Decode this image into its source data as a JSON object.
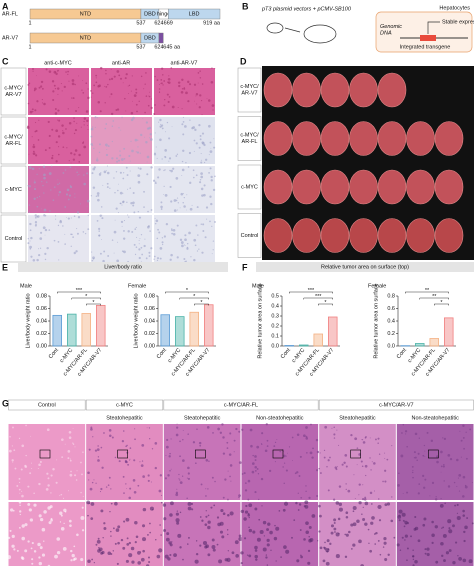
{
  "panel_a": {
    "label": "A",
    "rows": [
      {
        "name": "AR-FL",
        "domains": [
          "NTD",
          "DBD",
          "hinge",
          "LBD"
        ],
        "positions": [
          "1",
          "537",
          "624",
          "669",
          "919 aa"
        ]
      },
      {
        "name": "AR-V7",
        "domains": [
          "NTD",
          "DBD"
        ],
        "positions": [
          "1",
          "537",
          "624",
          "645 aa"
        ]
      }
    ]
  },
  "panel_b": {
    "label": "B",
    "vectors": "pT3 plasmid vectors + pCMV-SB100",
    "cell": "Hepatocytes",
    "expression": "Stable expression",
    "dna": [
      "Genomic",
      "DNA"
    ],
    "transgene": "Integrated transgene"
  },
  "panel_c": {
    "label": "C",
    "columns": [
      "anti-c-MYC",
      "anti-AR",
      "anti-AR-V7"
    ],
    "rows": [
      [
        "c-MYC/",
        "AR-V7"
      ],
      [
        "c-MYC/",
        "AR-FL"
      ],
      [
        "c-MYC"
      ],
      [
        "Control"
      ]
    ]
  },
  "panel_d": {
    "label": "D",
    "rows": [
      [
        "c-MYC/",
        "AR-V7"
      ],
      [
        "c-MYC/",
        "AR-FL"
      ],
      [
        "c-MYC"
      ],
      [
        "Control"
      ]
    ]
  },
  "panel_e": {
    "label": "E",
    "title": "Liver/body ratio",
    "charts": [
      {
        "type": "bar",
        "title": "Male",
        "ylabel": "Liver/body weight ratio",
        "categories": [
          "Cont",
          "c-MYC",
          "c-MYC/AR-FL",
          "c-MYC/AR-V7"
        ],
        "values": [
          0.049,
          0.051,
          0.052,
          0.065
        ],
        "colors": [
          "#5b9bd5",
          "#4bb3a8",
          "#f4b183",
          "#f08080"
        ],
        "ylim": [
          0,
          0.08
        ],
        "yticks": [
          {
            "value": 0,
            "label": "0.00"
          },
          0.02,
          0.04,
          0.06,
          0.08
        ],
        "stars": [
          "***",
          "*",
          "*"
        ]
      },
      {
        "type": "bar",
        "title": "Female",
        "ylabel": "Liver/body weight ratio",
        "categories": [
          "Cont",
          "c-MYC",
          "c-MYC/AR-FL",
          "c-MYC/AR-V7"
        ],
        "values": [
          0.05,
          0.047,
          0.054,
          0.066
        ],
        "colors": [
          "#5b9bd5",
          "#4bb3a8",
          "#f4b183",
          "#f08080"
        ],
        "ylim": [
          0,
          0.08
        ],
        "yticks": [
          {
            "value": 0,
            "label": "0.00"
          },
          0.02,
          0.04,
          0.06,
          0.08
        ],
        "stars": [
          "*",
          "*",
          "*"
        ]
      }
    ]
  },
  "panel_f": {
    "label": "F",
    "title": "Relative tumor area on surface (top)",
    "charts": [
      {
        "type": "bar",
        "title": "Male",
        "ylabel": "Relative tumor area on surface",
        "categories": [
          "Cont",
          "c-MYC",
          "c-MYC/AR-FL",
          "c-MYC/AR-V7"
        ],
        "values": [
          0.005,
          0.01,
          0.12,
          0.29
        ],
        "colors": [
          "#5b9bd5",
          "#4bb3a8",
          "#f4b183",
          "#f08080"
        ],
        "ylim": [
          0,
          0.5
        ],
        "yticks": [
          {
            "value": 0,
            "label": "0.0"
          },
          0.1,
          0.2,
          0.3,
          0.4,
          0.5
        ],
        "stars": [
          "***",
          "***",
          "*"
        ]
      },
      {
        "type": "bar",
        "title": "Female",
        "ylabel": "Relative tumor area on surface",
        "categories": [
          "Cont",
          "c-MYC",
          "c-MYC/AR-FL",
          "c-MYC/AR-V7"
        ],
        "values": [
          0.005,
          0.04,
          0.12,
          0.45
        ],
        "colors": [
          "#5b9bd5",
          "#4bb3a8",
          "#f4b183",
          "#f08080"
        ],
        "ylim": [
          0,
          0.8
        ],
        "yticks": [
          {
            "value": 0,
            "label": "0.0"
          },
          0.2,
          0.4,
          0.6,
          0.8
        ],
        "stars": [
          "**",
          "**",
          "*"
        ]
      }
    ]
  },
  "panel_g": {
    "label": "G",
    "groups": [
      "Control",
      "c-MYC",
      "c-MYC/AR-FL",
      "c-MYC/AR-V7"
    ],
    "subheaders": [
      "Steatohepatitic",
      "Steatohepatitic",
      "Non-steatohepatitic",
      "Steatohepatitic",
      "Non-steatohepatitic"
    ]
  }
}
